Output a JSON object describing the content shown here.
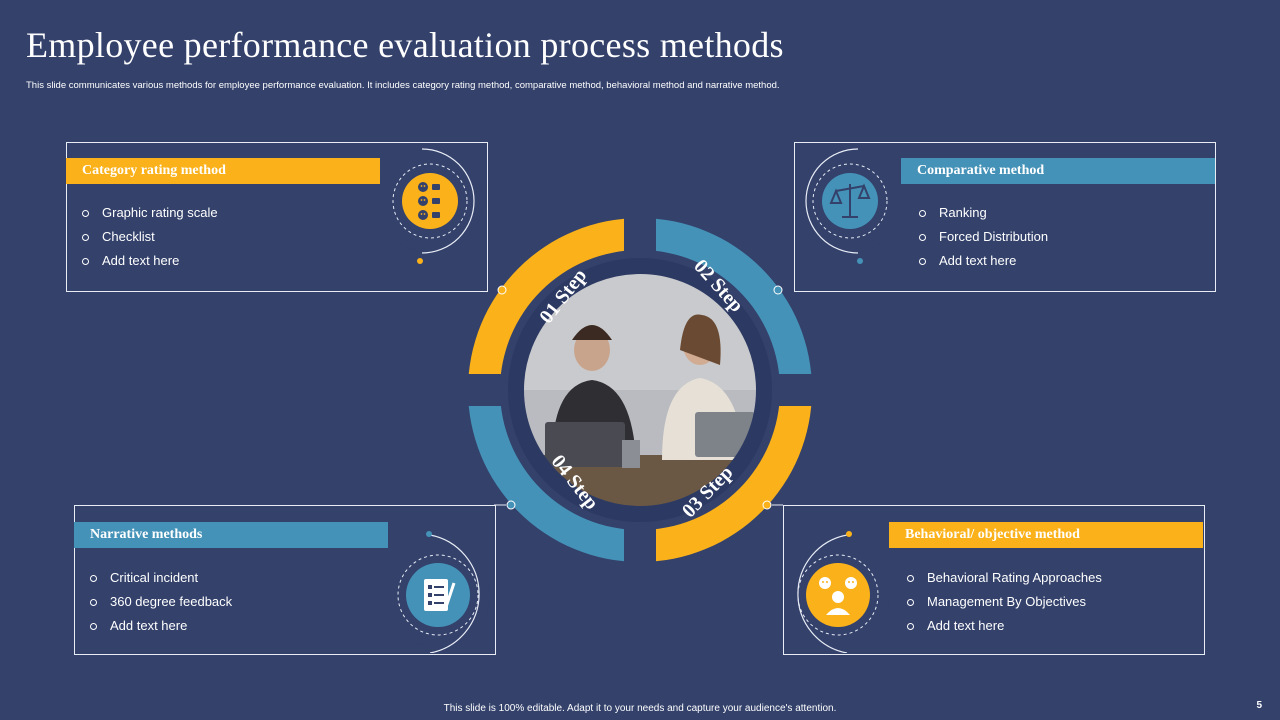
{
  "slide": {
    "title": "Employee performance evaluation process methods",
    "subtitle": "This slide communicates various methods for employee performance evaluation. It includes category rating method, comparative method, behavioral method and narrative method.",
    "footer": "This slide is 100% editable. Adapt it to your needs and capture your audience's attention.",
    "page_number": "5"
  },
  "colors": {
    "background": "#33416b",
    "orange": "#fbb21a",
    "blue": "#4592b8",
    "line": "#e8ecf5"
  },
  "steps": [
    {
      "label": "01 Step",
      "color": "orange"
    },
    {
      "label": "02 Step",
      "color": "blue"
    },
    {
      "label": "03 Step",
      "color": "orange"
    },
    {
      "label": "04 Step",
      "color": "blue"
    }
  ],
  "methods": {
    "category": {
      "title": "Category rating method",
      "items": [
        "Graphic rating scale",
        "Checklist",
        "Add text here"
      ],
      "icon": "rating-feedback-icon"
    },
    "comparative": {
      "title": "Comparative  method",
      "items": [
        "Ranking",
        "Forced Distribution",
        "Add text here"
      ],
      "icon": "balance-scale-icon"
    },
    "narrative": {
      "title": "Narrative methods",
      "items": [
        "Critical incident",
        "360 degree feedback",
        "Add text here"
      ],
      "icon": "checklist-document-icon"
    },
    "behavioral": {
      "title": "Behavioral/ objective method",
      "items": [
        "Behavioral  Rating Approaches",
        "Management  By Objectives",
        "Add text here"
      ],
      "icon": "people-emotion-icon"
    }
  },
  "center_image": "photo-two-people-working-at-laptops"
}
